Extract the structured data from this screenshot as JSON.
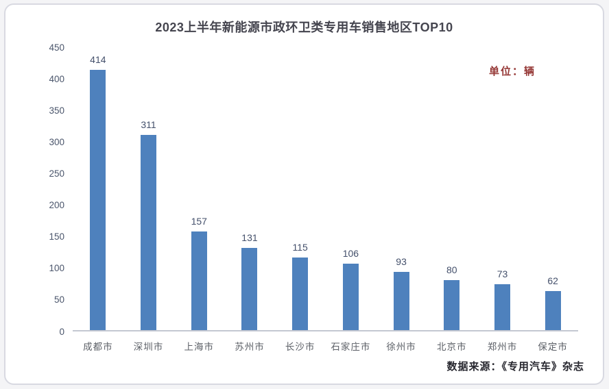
{
  "title": "2023上半年新能源市政环卫类专用车销售地区TOP10",
  "unit_label": "单位：辆",
  "source_label": "数据来源：《专用汽车》杂志",
  "colors": {
    "bar": "#4e81bd",
    "unit_text": "#953735",
    "axis_line": "#c3c7d1",
    "tick_text": "#4a556b",
    "card_border": "#d8d9e1"
  },
  "chart_data": {
    "type": "bar",
    "title": "2023上半年新能源市政环卫类专用车销售地区TOP10",
    "categories": [
      "成都市",
      "深圳市",
      "上海市",
      "苏州市",
      "长沙市",
      "石家庄市",
      "徐州市",
      "北京市",
      "郑州市",
      "保定市"
    ],
    "values": [
      414,
      311,
      157,
      131,
      115,
      106,
      93,
      80,
      73,
      62
    ],
    "xlabel": "",
    "ylabel": "",
    "unit": "辆",
    "ylim": [
      0,
      450
    ],
    "ytick_step": 50,
    "grid": false,
    "legend": "none",
    "data_labels": true
  }
}
